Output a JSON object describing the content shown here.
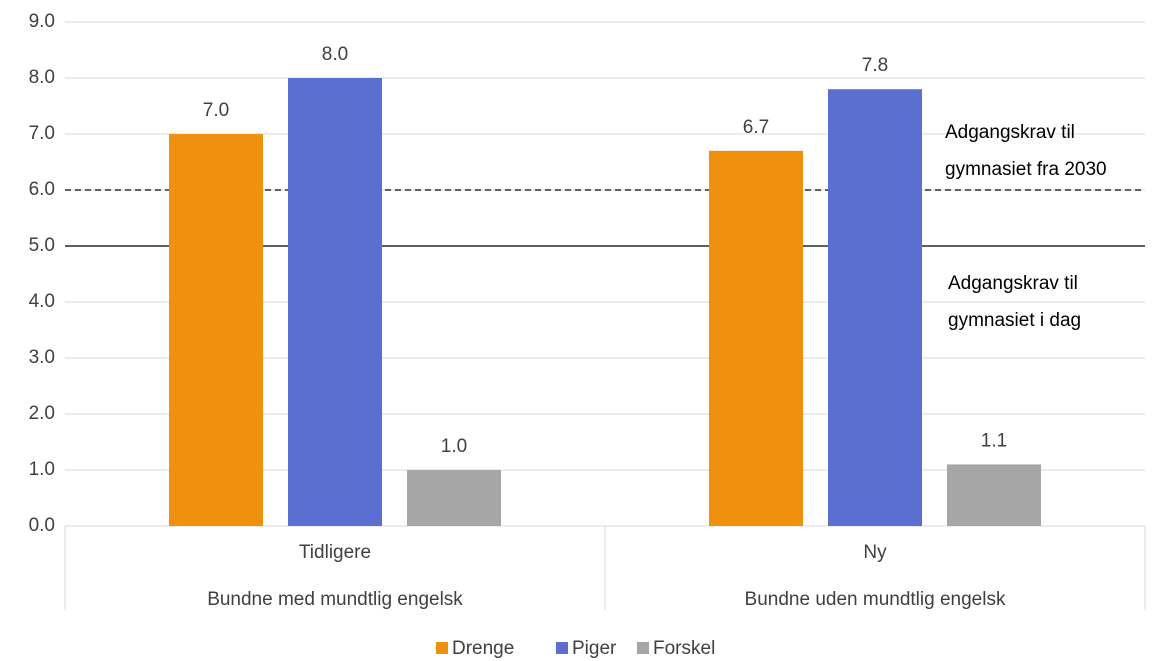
{
  "chart_data": {
    "type": "bar",
    "categories": [
      "Tidligere",
      "Ny"
    ],
    "category_groups": [
      "Bundne med mundtlig engelsk",
      "Bundne uden mundtlig engelsk"
    ],
    "series": [
      {
        "name": "Drenge",
        "color": "#f0900f",
        "values": [
          7.0,
          6.7
        ],
        "value_labels": [
          "7.0",
          "6.7"
        ]
      },
      {
        "name": "Piger",
        "color": "#5a6fcf",
        "values": [
          8.0,
          7.8
        ],
        "value_labels": [
          "8.0",
          "7.8"
        ]
      },
      {
        "name": "Forskel",
        "color": "#a6a6a6",
        "values": [
          1.0,
          1.1
        ],
        "value_labels": [
          "1.0",
          "1.1"
        ]
      }
    ],
    "ylim": [
      0,
      9
    ],
    "yticks": [
      {
        "value": 0,
        "label": "0.0"
      },
      {
        "value": 1,
        "label": "1.0"
      },
      {
        "value": 2,
        "label": "2.0"
      },
      {
        "value": 3,
        "label": "3.0"
      },
      {
        "value": 4,
        "label": "4.0"
      },
      {
        "value": 5,
        "label": "5.0"
      },
      {
        "value": 6,
        "label": "6.0"
      },
      {
        "value": 7,
        "label": "7.0"
      },
      {
        "value": 8,
        "label": "8.0"
      },
      {
        "value": 9,
        "label": "9.0"
      }
    ],
    "grid": true,
    "legend": "bottom",
    "reference_lines": [
      {
        "value": 6,
        "style": "dashed",
        "label": [
          "Adgangskrav til",
          "gymnasiet fra 2030"
        ]
      },
      {
        "value": 5,
        "style": "solid",
        "label": [
          "Adgangskrav til",
          "gymnasiet i dag"
        ]
      }
    ]
  }
}
